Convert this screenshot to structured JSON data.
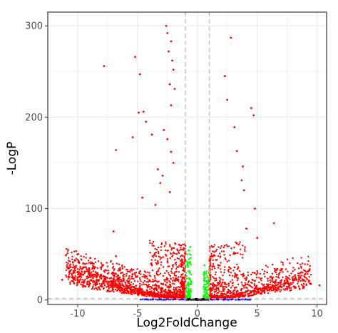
{
  "chart_data": {
    "type": "scatter",
    "title": "",
    "xlabel": "Log2FoldChange",
    "ylabel": "-LogP",
    "xlim": [
      -12.5,
      10.8
    ],
    "ylim": [
      -5,
      315
    ],
    "xticks": [
      -10,
      -5,
      0,
      5,
      10
    ],
    "yticks": [
      0,
      100,
      200,
      300
    ],
    "grid": true,
    "legend": "none",
    "reference_lines": {
      "vertical": [
        -1,
        1
      ],
      "horizontal": [
        1.3
      ]
    },
    "colors": {
      "significant": "#ff0000",
      "fold_change_only": "#0000ff",
      "p_value_only": "#00ff00",
      "not_significant": "#000000",
      "reference_line": "#bbbbbb",
      "grid": "#ebebeb",
      "panel_border": "#333333"
    },
    "series": [
      {
        "color": "#ff0000",
        "points": [
          [
            -7.8,
            256
          ],
          [
            -5.2,
            266
          ],
          [
            -4.8,
            247
          ],
          [
            -4.5,
            206
          ],
          [
            -4.9,
            205
          ],
          [
            -5.4,
            178
          ],
          [
            -4.3,
            195
          ],
          [
            -6.8,
            164
          ],
          [
            -3.8,
            181
          ],
          [
            -3.1,
            128
          ],
          [
            -2.6,
            300
          ],
          [
            -2.5,
            292
          ],
          [
            -2.2,
            283
          ],
          [
            -2.4,
            272
          ],
          [
            -2.1,
            262
          ],
          [
            -2.0,
            252
          ],
          [
            -2.3,
            236
          ],
          [
            -1.9,
            231
          ],
          [
            -2.2,
            213
          ],
          [
            -2.8,
            186
          ],
          [
            -2.5,
            176
          ],
          [
            -2.2,
            162
          ],
          [
            -2.0,
            150
          ],
          [
            -3.3,
            143
          ],
          [
            -2.9,
            136
          ],
          [
            -2.3,
            118
          ],
          [
            -4.6,
            112
          ],
          [
            -3.5,
            104
          ],
          [
            2.8,
            287
          ],
          [
            2.3,
            245
          ],
          [
            2.5,
            219
          ],
          [
            4.5,
            210
          ],
          [
            4.7,
            202
          ],
          [
            3.1,
            189
          ],
          [
            3.3,
            163
          ],
          [
            3.8,
            146
          ],
          [
            3.7,
            131
          ],
          [
            3.9,
            120
          ],
          [
            4.8,
            100
          ],
          [
            6.4,
            84
          ],
          [
            5.0,
            68
          ],
          [
            4.1,
            78
          ],
          [
            -11.3,
            22
          ],
          [
            -10.3,
            18
          ],
          [
            -9.4,
            15
          ],
          [
            -7.0,
            75
          ],
          [
            -9.9,
            42
          ],
          [
            -6.8,
            48
          ],
          [
            9.4,
            18
          ],
          [
            10.2,
            16
          ],
          [
            8.9,
            22
          ],
          [
            7.6,
            24
          ]
        ],
        "note": ""
      },
      {
        "color": "#0000ff",
        "points": [
          [
            -1.0,
            2
          ]
        ]
      },
      {
        "color": "#00ff00",
        "points": [
          [
            -0.8,
            8
          ],
          [
            0.8,
            8
          ],
          [
            -0.6,
            58
          ],
          [
            0.6,
            38
          ]
        ]
      },
      {
        "color": "#000000",
        "points": [
          [
            0.0,
            0
          ]
        ]
      }
    ]
  }
}
